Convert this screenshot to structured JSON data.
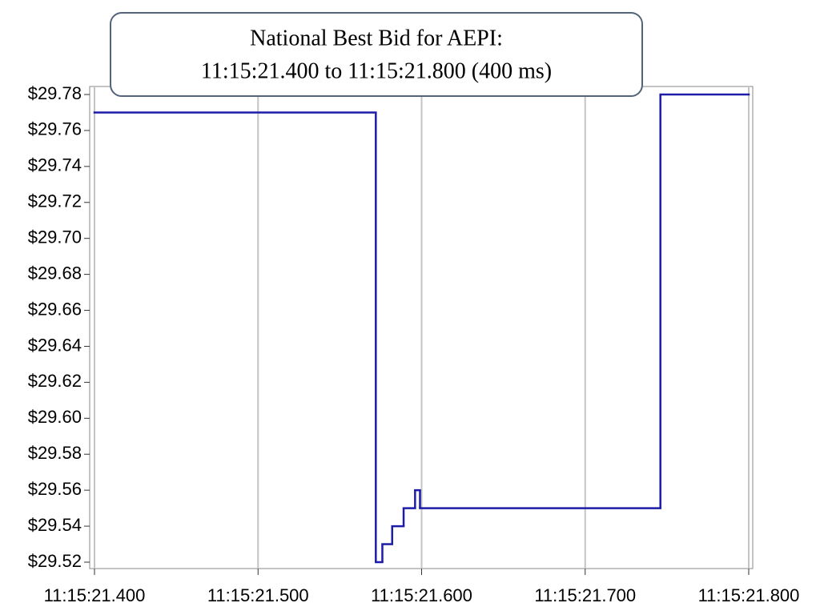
{
  "chart_data": {
    "type": "step",
    "title": "National Best Bid for AEPI:",
    "subtitle": "11:15:21.400 to 11:15:21.800 (400 ms)",
    "x": [
      21.4,
      21.572,
      21.576,
      21.582,
      21.589,
      21.596,
      21.599,
      21.746
    ],
    "values": [
      29.77,
      29.52,
      29.53,
      29.54,
      29.55,
      29.56,
      29.55,
      29.78
    ],
    "color": "#1c1ca8",
    "xlim": [
      21.4,
      21.8
    ],
    "xticks": [
      {
        "value": 21.4,
        "label": "11:15:21.400"
      },
      {
        "value": 21.5,
        "label": "11:15:21.500"
      },
      {
        "value": 21.6,
        "label": "11:15:21.600"
      },
      {
        "value": 21.7,
        "label": "11:15:21.700"
      },
      {
        "value": 21.8,
        "label": "11:15:21.800"
      }
    ],
    "ylim": [
      29.52,
      29.78
    ],
    "yticks": [
      {
        "value": 29.52,
        "label": "$29.52"
      },
      {
        "value": 29.54,
        "label": "$29.54"
      },
      {
        "value": 29.56,
        "label": "$29.56"
      },
      {
        "value": 29.58,
        "label": "$29.58"
      },
      {
        "value": 29.6,
        "label": "$29.60"
      },
      {
        "value": 29.62,
        "label": "$29.62"
      },
      {
        "value": 29.64,
        "label": "$29.64"
      },
      {
        "value": 29.66,
        "label": "$29.66"
      },
      {
        "value": 29.68,
        "label": "$29.68"
      },
      {
        "value": 29.7,
        "label": "$29.70"
      },
      {
        "value": 29.72,
        "label": "$29.72"
      },
      {
        "value": 29.74,
        "label": "$29.74"
      },
      {
        "value": 29.76,
        "label": "$29.76"
      },
      {
        "value": 29.78,
        "label": "$29.78"
      }
    ],
    "grid": "x"
  }
}
